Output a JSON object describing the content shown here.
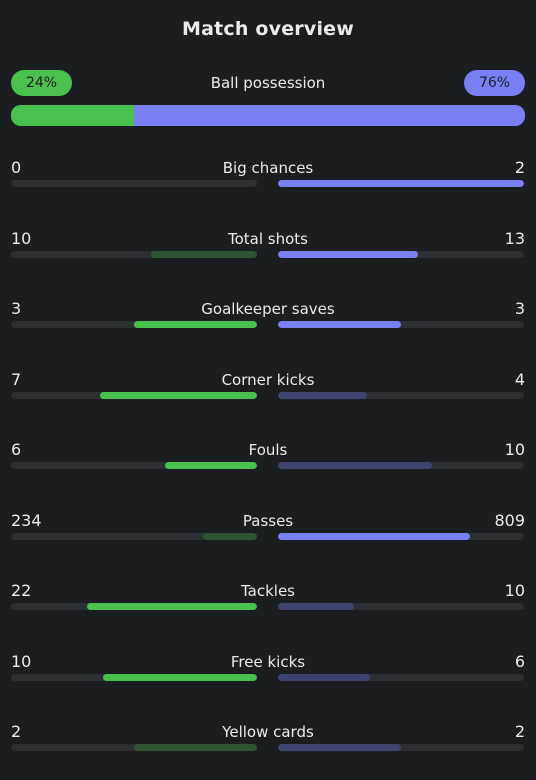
{
  "title": "Match overview",
  "colors": {
    "home_strong": "#4ac04f",
    "home_weak": "#2f5433",
    "away_strong": "#7a80f4",
    "away_weak": "#3f446e",
    "track": "#2b3034"
  },
  "possession": {
    "label": "Ball possession",
    "home_value": "24%",
    "away_value": "76%",
    "home_fraction": 0.24,
    "away_fraction": 0.76
  },
  "stats": [
    {
      "label": "Big chances",
      "home": "0",
      "away": "2",
      "home_fraction": 0.0,
      "away_fraction": 1.0,
      "home_strong": false,
      "away_strong": true
    },
    {
      "label": "Total shots",
      "home": "10",
      "away": "13",
      "home_fraction": 0.43,
      "away_fraction": 0.57,
      "home_strong": false,
      "away_strong": true
    },
    {
      "label": "Goalkeeper saves",
      "home": "3",
      "away": "3",
      "home_fraction": 0.5,
      "away_fraction": 0.5,
      "home_strong": true,
      "away_strong": true
    },
    {
      "label": "Corner kicks",
      "home": "7",
      "away": "4",
      "home_fraction": 0.64,
      "away_fraction": 0.36,
      "home_strong": true,
      "away_strong": false
    },
    {
      "label": "Fouls",
      "home": "6",
      "away": "10",
      "home_fraction": 0.375,
      "away_fraction": 0.625,
      "home_strong": true,
      "away_strong": false
    },
    {
      "label": "Passes",
      "home": "234",
      "away": "809",
      "home_fraction": 0.22,
      "away_fraction": 0.78,
      "home_strong": false,
      "away_strong": true
    },
    {
      "label": "Tackles",
      "home": "22",
      "away": "10",
      "home_fraction": 0.69,
      "away_fraction": 0.31,
      "home_strong": true,
      "away_strong": false
    },
    {
      "label": "Free kicks",
      "home": "10",
      "away": "6",
      "home_fraction": 0.625,
      "away_fraction": 0.375,
      "home_strong": true,
      "away_strong": false
    },
    {
      "label": "Yellow cards",
      "home": "2",
      "away": "2",
      "home_fraction": 0.5,
      "away_fraction": 0.5,
      "home_strong": false,
      "away_strong": false
    }
  ]
}
